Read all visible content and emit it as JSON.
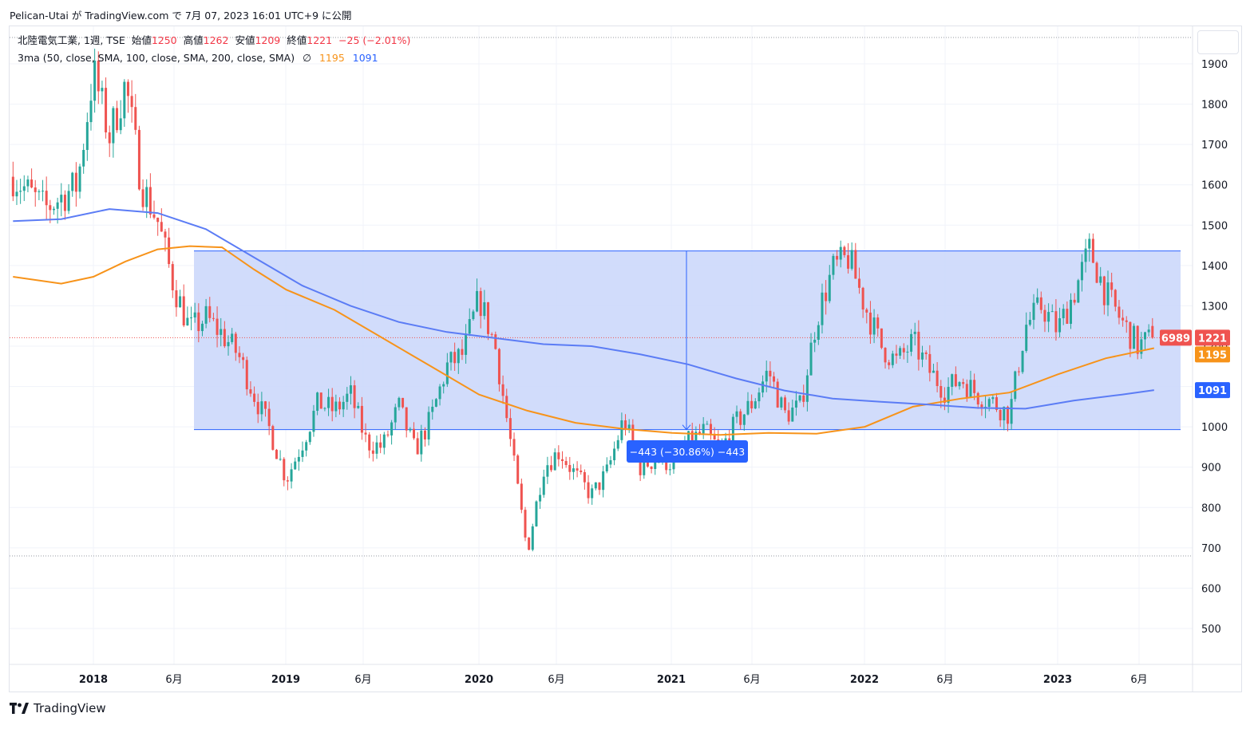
{
  "header": {
    "text": "Pelican-Utai が TradingView.com で 7月 07, 2023 16:01 UTC+9 に公開"
  },
  "legend": {
    "symbol": "北陸電気工業, 1週, TSE",
    "open_label": "始値",
    "open": "1250",
    "high_label": "高値",
    "high": "1262",
    "low_label": "安値",
    "low": "1209",
    "close_label": "終値",
    "close": "1221",
    "change": "−25 (−2.01%)",
    "ma_label": "3ma (50, close, SMA, 100, close, SMA, 200, close, SMA)",
    "ma_hidden_icon": "∅",
    "ma100_value": "1195",
    "ma200_value": "1091"
  },
  "measure": {
    "label": "−443 (−30.86%) −443"
  },
  "price_badges": {
    "volume": "6989",
    "last": "1221",
    "ma100": "1195",
    "ma200": "1091"
  },
  "footer": {
    "logo_icon": "tradingview-logo-icon",
    "brand": "TradingView"
  },
  "colors": {
    "up": "#26a69a",
    "down": "#ef5350",
    "ma100": "#f7931a",
    "ma200": "#5b7cf5",
    "measure_fill": "#c9d6fa",
    "measure_line": "#2962ff"
  },
  "chart_data": {
    "type": "candlestick",
    "title": "北陸電気工業, 1週, TSE",
    "y_ticks": [
      1900,
      1800,
      1700,
      1600,
      1500,
      1400,
      1300,
      1200,
      1100,
      1000,
      900,
      800,
      700,
      600,
      500
    ],
    "x_ticks": [
      {
        "label": "2018",
        "bold": true
      },
      {
        "label": "6月",
        "bold": false
      },
      {
        "label": "2019",
        "bold": true
      },
      {
        "label": "6月",
        "bold": false
      },
      {
        "label": "2020",
        "bold": true
      },
      {
        "label": "6月",
        "bold": false
      },
      {
        "label": "2021",
        "bold": true
      },
      {
        "label": "6月",
        "bold": false
      },
      {
        "label": "2022",
        "bold": true
      },
      {
        "label": "6月",
        "bold": false
      },
      {
        "label": "2023",
        "bold": true
      },
      {
        "label": "6月",
        "bold": false
      }
    ],
    "price_range": [
      420,
      1990
    ],
    "last_close": 1221,
    "all_time_high_line": 1955,
    "low_line": 680,
    "measure_box": {
      "top_price": 1436,
      "bottom_price": 993,
      "start": "2018-07",
      "end": "2023-07"
    },
    "series": [
      {
        "name": "SMA 100",
        "points": [
          [
            "2017-08",
            1372
          ],
          [
            "2017-11",
            1355
          ],
          [
            "2018-01",
            1372
          ],
          [
            "2018-03",
            1410
          ],
          [
            "2018-05",
            1440
          ],
          [
            "2018-07",
            1448
          ],
          [
            "2018-09",
            1445
          ],
          [
            "2018-11",
            1390
          ],
          [
            "2019-01",
            1340
          ],
          [
            "2019-04",
            1290
          ],
          [
            "2019-07",
            1220
          ],
          [
            "2019-10",
            1150
          ],
          [
            "2020-01",
            1080
          ],
          [
            "2020-04",
            1040
          ],
          [
            "2020-07",
            1010
          ],
          [
            "2020-10",
            995
          ],
          [
            "2021-01",
            985
          ],
          [
            "2021-04",
            980
          ],
          [
            "2021-07",
            985
          ],
          [
            "2021-10",
            983
          ],
          [
            "2022-01",
            1000
          ],
          [
            "2022-04",
            1050
          ],
          [
            "2022-07",
            1070
          ],
          [
            "2022-10",
            1085
          ],
          [
            "2023-01",
            1130
          ],
          [
            "2023-04",
            1170
          ],
          [
            "2023-07",
            1195
          ]
        ]
      },
      {
        "name": "SMA 200",
        "points": [
          [
            "2017-08",
            1510
          ],
          [
            "2017-11",
            1515
          ],
          [
            "2018-02",
            1540
          ],
          [
            "2018-05",
            1530
          ],
          [
            "2018-08",
            1490
          ],
          [
            "2018-11",
            1420
          ],
          [
            "2019-02",
            1350
          ],
          [
            "2019-05",
            1300
          ],
          [
            "2019-08",
            1260
          ],
          [
            "2019-11",
            1235
          ],
          [
            "2020-02",
            1220
          ],
          [
            "2020-05",
            1205
          ],
          [
            "2020-08",
            1200
          ],
          [
            "2020-11",
            1180
          ],
          [
            "2021-02",
            1155
          ],
          [
            "2021-05",
            1120
          ],
          [
            "2021-08",
            1090
          ],
          [
            "2021-11",
            1070
          ],
          [
            "2022-02",
            1062
          ],
          [
            "2022-05",
            1055
          ],
          [
            "2022-08",
            1047
          ],
          [
            "2022-11",
            1045
          ],
          [
            "2023-02",
            1065
          ],
          [
            "2023-05",
            1080
          ],
          [
            "2023-07",
            1091
          ]
        ]
      }
    ],
    "candles_close_path": [
      [
        "2017-08",
        1620
      ],
      [
        "2017-10",
        1540
      ],
      [
        "2017-12",
        1600
      ],
      [
        "2018-01",
        1880
      ],
      [
        "2018-02",
        1720
      ],
      [
        "2018-03",
        1850
      ],
      [
        "2018-04",
        1600
      ],
      [
        "2018-05",
        1510
      ],
      [
        "2018-06",
        1350
      ],
      [
        "2018-07",
        1240
      ],
      [
        "2018-08",
        1270
      ],
      [
        "2018-09",
        1230
      ],
      [
        "2018-10",
        1180
      ],
      [
        "2018-11",
        1080
      ],
      [
        "2018-12",
        990
      ],
      [
        "2019-01",
        870
      ],
      [
        "2019-02",
        960
      ],
      [
        "2019-03",
        1060
      ],
      [
        "2019-04",
        1040
      ],
      [
        "2019-05",
        1080
      ],
      [
        "2019-06",
        960
      ],
      [
        "2019-07",
        950
      ],
      [
        "2019-08",
        1050
      ],
      [
        "2019-09",
        940
      ],
      [
        "2019-10",
        1020
      ],
      [
        "2019-11",
        1150
      ],
      [
        "2019-12",
        1180
      ],
      [
        "2020-01",
        1320
      ],
      [
        "2020-02",
        1200
      ],
      [
        "2020-03",
        950
      ],
      [
        "2020-04",
        690
      ],
      [
        "2020-05",
        900
      ],
      [
        "2020-06",
        940
      ],
      [
        "2020-07",
        880
      ],
      [
        "2020-08",
        830
      ],
      [
        "2020-09",
        890
      ],
      [
        "2020-10",
        1020
      ],
      [
        "2020-11",
        900
      ],
      [
        "2020-12",
        920
      ],
      [
        "2021-01",
        910
      ],
      [
        "2021-02",
        960
      ],
      [
        "2021-03",
        990
      ],
      [
        "2021-04",
        940
      ],
      [
        "2021-05",
        1010
      ],
      [
        "2021-06",
        1060
      ],
      [
        "2021-07",
        1140
      ],
      [
        "2021-08",
        1030
      ],
      [
        "2021-09",
        1050
      ],
      [
        "2021-10",
        1270
      ],
      [
        "2021-11",
        1390
      ],
      [
        "2021-12",
        1420
      ],
      [
        "2022-01",
        1300
      ],
      [
        "2022-02",
        1200
      ],
      [
        "2022-03",
        1160
      ],
      [
        "2022-04",
        1210
      ],
      [
        "2022-05",
        1140
      ],
      [
        "2022-06",
        1090
      ],
      [
        "2022-07",
        1120
      ],
      [
        "2022-08",
        1080
      ],
      [
        "2022-09",
        1060
      ],
      [
        "2022-10",
        1030
      ],
      [
        "2022-11",
        1250
      ],
      [
        "2022-12",
        1300
      ],
      [
        "2023-01",
        1240
      ],
      [
        "2023-02",
        1330
      ],
      [
        "2023-03",
        1440
      ],
      [
        "2023-04",
        1330
      ],
      [
        "2023-05",
        1260
      ],
      [
        "2023-06",
        1200
      ],
      [
        "2023-07",
        1221
      ]
    ]
  }
}
